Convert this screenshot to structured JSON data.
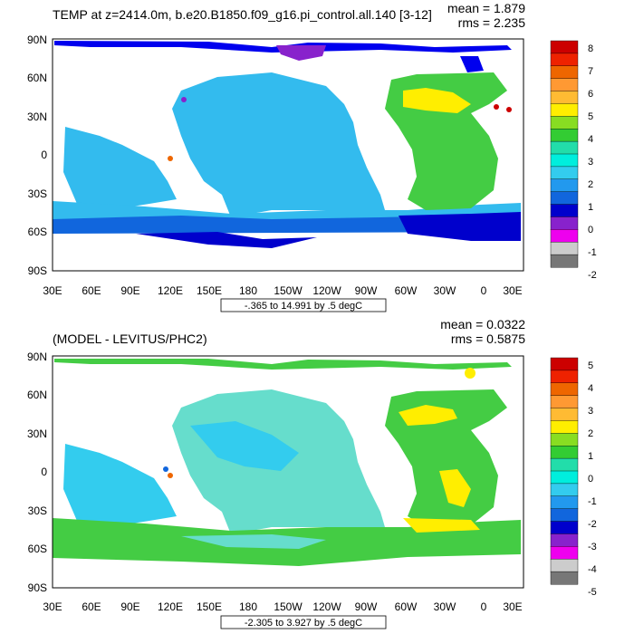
{
  "panels": [
    {
      "title": "TEMP at z=2414.0m, b.e20.B1850.f09_g16.pi_control.all.140 [3-12]",
      "mean_label": "mean = 1.879",
      "rms_label": "rms = 2.235",
      "range_label": "-.365 to 14.991 by .5 degC",
      "colorbar_labels": [
        "8",
        "7",
        "6",
        "5",
        "4",
        "3",
        "2",
        "1",
        "0",
        "-1",
        "-2"
      ],
      "ocean_fill": "#33bbee",
      "north_fill": "#0000ee",
      "south_fill": "#1166dd",
      "atlantic_fill": "#44cc44"
    },
    {
      "title": "(MODEL - LEVITUS/PHC2)",
      "mean_label": "mean = 0.0322",
      "rms_label": "rms = 0.5875",
      "range_label": "-2.305 to 3.927 by .5 degC",
      "colorbar_labels": [
        "5",
        "4",
        "3",
        "2",
        "1",
        "0",
        "-1",
        "-2",
        "-3",
        "-4",
        "-5"
      ],
      "ocean_fill": "#66ddcc",
      "north_fill": "#44cc44",
      "south_fill": "#66ddcc",
      "atlantic_fill": "#44cc44"
    }
  ],
  "lat_labels": [
    "90N",
    "60N",
    "30N",
    "0",
    "30S",
    "60S",
    "90S"
  ],
  "lon_labels": [
    "30E",
    "60E",
    "90E",
    "120E",
    "150E",
    "180",
    "150W",
    "120W",
    "90W",
    "60W",
    "30W",
    "0",
    "30E"
  ],
  "colorbar_colors": [
    "#cc0000",
    "#ee2200",
    "#ee6600",
    "#ff9933",
    "#ffbb33",
    "#ffee00",
    "#88dd22",
    "#33cc33",
    "#22ddaa",
    "#00eedd",
    "#33ccee",
    "#2299ee",
    "#1166dd",
    "#0000cc",
    "#8822cc",
    "#ee00ee",
    "#cccccc",
    "#777777"
  ]
}
